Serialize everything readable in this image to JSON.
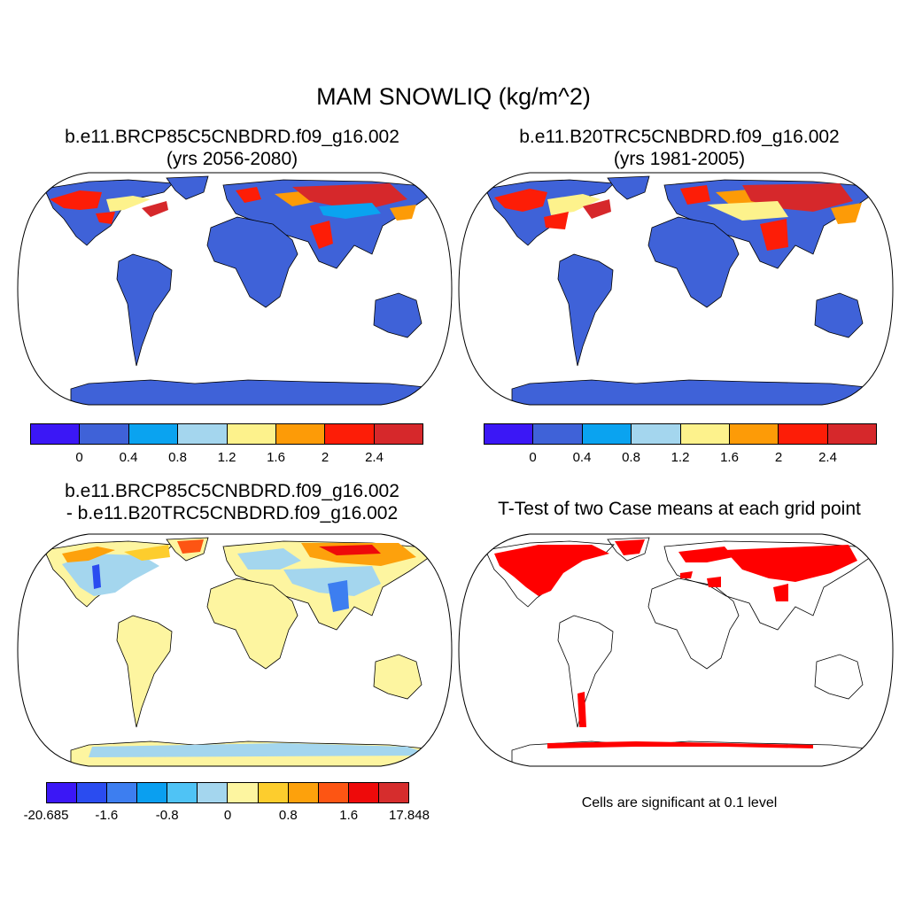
{
  "figure": {
    "title": "MAM SNOWLIQ (kg/m^2)",
    "panels": [
      {
        "title_line1": "b.e11.BRCP85C5CNBDRD.f09_g16.002",
        "title_line2": "(yrs 2056-2080)"
      },
      {
        "title_line1": "b.e11.B20TRC5CNBDRD.f09_g16.002",
        "title_line2": "(yrs 1981-2005)"
      },
      {
        "title_line1": "b.e11.BRCP85C5CNBDRD.f09_g16.002",
        "title_line2": "- b.e11.B20TRC5CNBDRD.f09_g16.002"
      },
      {
        "title_line1": "T-Test of two Case means at each grid point"
      }
    ],
    "footnote": "Cells are significant at 0.1 level"
  },
  "colors": {
    "ocean": "#ffffff",
    "land_base_abs": "#3f62d8",
    "land_base_diff": "#fdf5a0",
    "significant": "#ff0000"
  },
  "colorbars": {
    "absolute": {
      "colors": [
        "#3b17f6",
        "#3f62d8",
        "#0aa3f0",
        "#a4d6ee",
        "#fdf28c",
        "#fd9b07",
        "#fd1d07",
        "#d6282b"
      ],
      "tick_labels": [
        "0",
        "0.4",
        "0.8",
        "1.2",
        "1.6",
        "2",
        "2.4"
      ]
    },
    "difference": {
      "colors": [
        "#3b17f6",
        "#2a4cf0",
        "#3d7ef0",
        "#0a9ff0",
        "#4fc3f5",
        "#a4d6ee",
        "#fdf5a0",
        "#fdcd2d",
        "#fda10c",
        "#fd5513",
        "#ee0a0a",
        "#d62d2d"
      ],
      "tick_labels": [
        "-20.685",
        "-1.6",
        "-0.8",
        "0",
        "0.8",
        "1.6",
        "17.848"
      ]
    }
  }
}
